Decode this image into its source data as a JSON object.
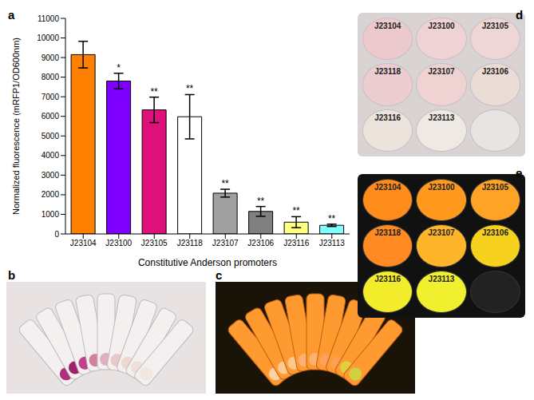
{
  "chart_data": {
    "type": "bar",
    "x_label": "Constitutive Anderson promoters",
    "y_label": "Normalized fluorescence (mRFP1/OD600nm)",
    "categories": [
      "J23104",
      "J23100",
      "J23105",
      "J23118",
      "J23107",
      "J23106",
      "J23116",
      "J23113"
    ],
    "values": [
      9150,
      7800,
      6330,
      5980,
      2080,
      1150,
      600,
      440
    ],
    "errors": [
      680,
      400,
      650,
      1130,
      200,
      250,
      280,
      60
    ],
    "annotations": [
      "",
      "*",
      "**",
      "**",
      "**",
      "**",
      "**",
      "**"
    ],
    "colors": [
      "#ff8000",
      "#8000ff",
      "#e0107a",
      "#ffffff",
      "#a0a0a0",
      "#808080",
      "#ffff80",
      "#80ffff"
    ],
    "ylim": [
      0,
      11000
    ],
    "yticks": [
      0,
      1000,
      2000,
      3000,
      4000,
      5000,
      6000,
      7000,
      8000,
      9000,
      10000,
      11000
    ],
    "grid": false
  },
  "panel_labels": {
    "a": "a",
    "b": "b",
    "c": "c",
    "d": "d",
    "e": "e"
  },
  "plates": {
    "d": [
      "J23104",
      "J23100",
      "J23105",
      "J23118",
      "J23107",
      "J23106",
      "J23116",
      "J23113"
    ],
    "e": [
      "J23104",
      "J23100",
      "J23105",
      "J23118",
      "J23107",
      "J23106",
      "J23116",
      "J23113"
    ]
  }
}
